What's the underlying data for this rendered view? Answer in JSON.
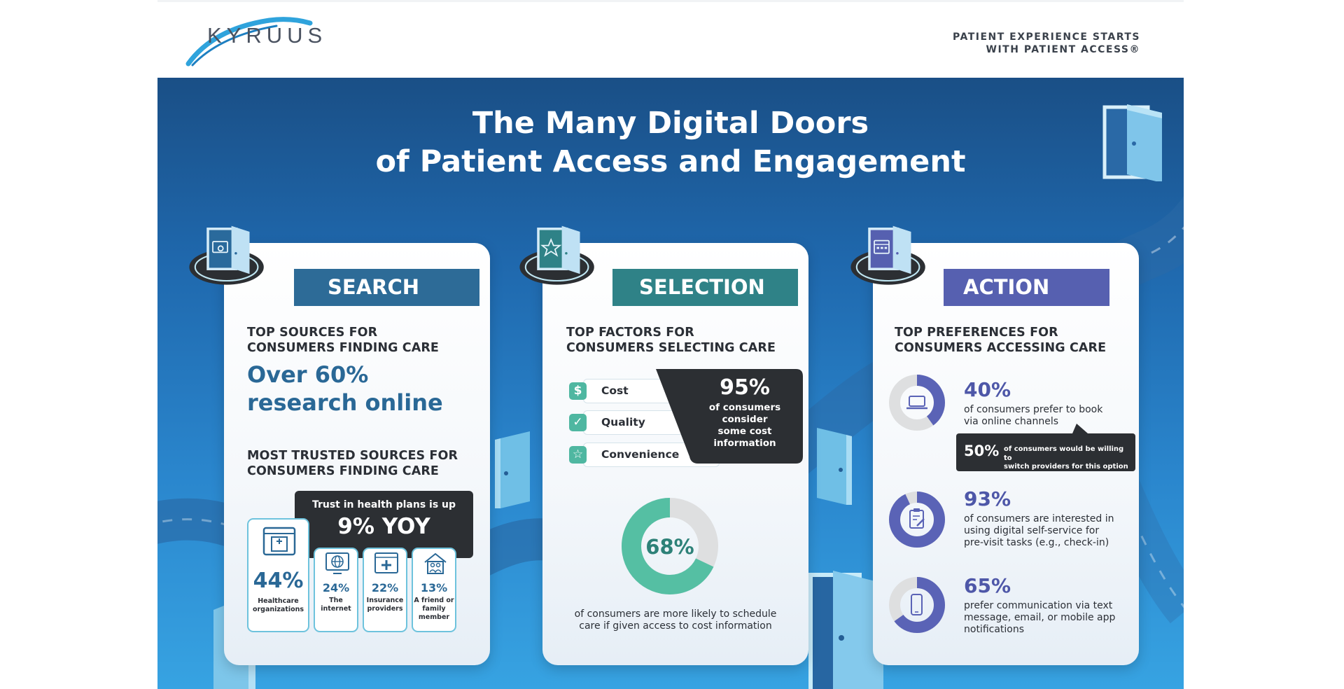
{
  "header": {
    "logo_text": "KYRUUS",
    "tagline_line1": "PATIENT EXPERIENCE STARTS",
    "tagline_line2": "WITH PATIENT ACCESS®"
  },
  "title": {
    "line1": "The Many Digital Doors",
    "line2": "of Patient Access and Engagement"
  },
  "colors": {
    "search": "#2d6b97",
    "selection": "#2f8287",
    "action": "#5660b0",
    "teal_accent": "#4fb7a1",
    "dark_box": "#2c2f33"
  },
  "search": {
    "banner": "SEARCH",
    "badge_icon": "search-browser-icon",
    "sub1_line1": "TOP SOURCES FOR",
    "sub1_line2": "CONSUMERS FINDING CARE",
    "big_line1": "Over 60%",
    "big_line2": "research online",
    "sub2_line1": "MOST TRUSTED SOURCES FOR",
    "sub2_line2": "CONSUMERS FINDING CARE",
    "trust_label": "Trust in health plans is up",
    "trust_value": "9% YOY",
    "sources": [
      {
        "pct": "44%",
        "name_line1": "Healthcare",
        "name_line2": "organizations",
        "name_line3": "",
        "icon": "hospital-icon"
      },
      {
        "pct": "24%",
        "name_line1": "The",
        "name_line2": "internet",
        "name_line3": "",
        "icon": "globe-monitor-icon"
      },
      {
        "pct": "22%",
        "name_line1": "Insurance",
        "name_line2": "providers",
        "name_line3": "",
        "icon": "medical-cross-icon"
      },
      {
        "pct": "13%",
        "name_line1": "A friend or",
        "name_line2": "family",
        "name_line3": "member",
        "icon": "family-house-icon"
      }
    ]
  },
  "selection": {
    "banner": "SELECTION",
    "badge_icon": "star-icon",
    "sub1_line1": "TOP FACTORS FOR",
    "sub1_line2": "CONSUMERS SELECTING CARE",
    "factors": [
      {
        "label": "Cost",
        "icon_text": "$",
        "icon": "dollar-icon"
      },
      {
        "label": "Quality",
        "icon_text": "✓",
        "icon": "check-icon"
      },
      {
        "label": "Convenience",
        "icon_text": "☆",
        "icon": "star-outline-icon"
      }
    ],
    "callout_pct": "95%",
    "callout_line1": "of consumers",
    "callout_line2": "consider",
    "callout_line3": "some cost",
    "callout_line4": "information",
    "donut_value": 68,
    "donut_label": "68%",
    "caption_line1": "of consumers are more likely to schedule",
    "caption_line2": "care if given access to cost information"
  },
  "action": {
    "banner": "ACTION",
    "badge_icon": "calendar-icon",
    "sub1_line1": "TOP PREFERENCES FOR",
    "sub1_line2": "CONSUMERS ACCESSING CARE",
    "stats": [
      {
        "value": 40,
        "pct": "40%",
        "line1": "of consumers prefer to book",
        "line2": "via online channels",
        "line3": "",
        "icon": "laptop-icon"
      },
      {
        "value": 93,
        "pct": "93%",
        "line1": "of consumers are interested in",
        "line2": "using digital self-service for",
        "line3": "pre-visit tasks (e.g., check-in)",
        "icon": "clipboard-icon"
      },
      {
        "value": 65,
        "pct": "65%",
        "line1": "prefer communication via text",
        "line2": "message, email, or mobile app",
        "line3": "notifications",
        "icon": "mobile-phone-icon"
      }
    ],
    "switch_pct": "50%",
    "switch_line1": "of consumers would be willing to",
    "switch_line2": "switch providers for this option"
  }
}
